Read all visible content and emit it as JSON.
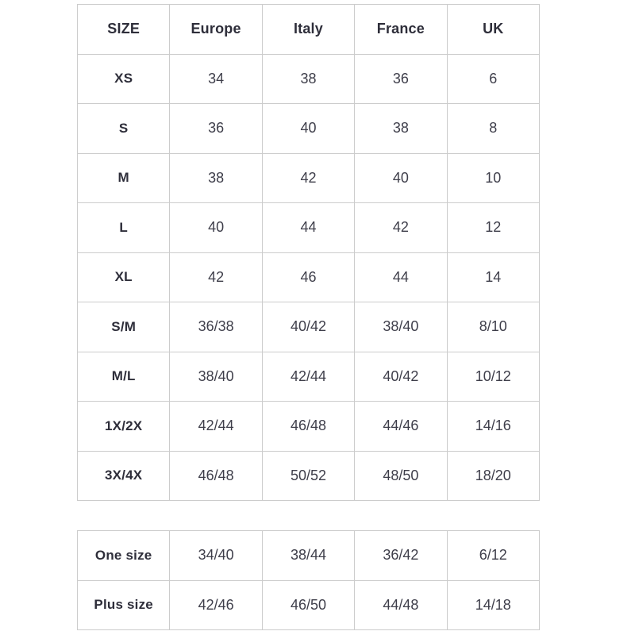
{
  "page": {
    "background": "#ffffff"
  },
  "colors": {
    "border": "#cccccc",
    "header_text": "#2e2e3a",
    "cell_text": "#3e3e4a"
  },
  "size_chart": {
    "columns": [
      "SIZE",
      "Europe",
      "Italy",
      "France",
      "UK"
    ],
    "rows": [
      {
        "label": "XS",
        "values": [
          "34",
          "38",
          "36",
          "6"
        ]
      },
      {
        "label": "S",
        "values": [
          "36",
          "40",
          "38",
          "8"
        ]
      },
      {
        "label": "M",
        "values": [
          "38",
          "42",
          "40",
          "10"
        ]
      },
      {
        "label": "L",
        "values": [
          "40",
          "44",
          "42",
          "12"
        ]
      },
      {
        "label": "XL",
        "values": [
          "42",
          "46",
          "44",
          "14"
        ]
      },
      {
        "label": "S/M",
        "values": [
          "36/38",
          "40/42",
          "38/40",
          "8/10"
        ]
      },
      {
        "label": "M/L",
        "values": [
          "38/40",
          "42/44",
          "40/42",
          "10/12"
        ]
      },
      {
        "label": "1X/2X",
        "values": [
          "42/44",
          "46/48",
          "44/46",
          "14/16"
        ]
      },
      {
        "label": "3X/4X",
        "values": [
          "46/48",
          "50/52",
          "48/50",
          "18/20"
        ]
      }
    ]
  },
  "special_sizes": {
    "rows": [
      {
        "label": "One size",
        "values": [
          "34/40",
          "38/44",
          "36/42",
          "6/12"
        ]
      },
      {
        "label": "Plus size",
        "values": [
          "42/46",
          "46/50",
          "44/48",
          "14/18"
        ]
      }
    ]
  }
}
